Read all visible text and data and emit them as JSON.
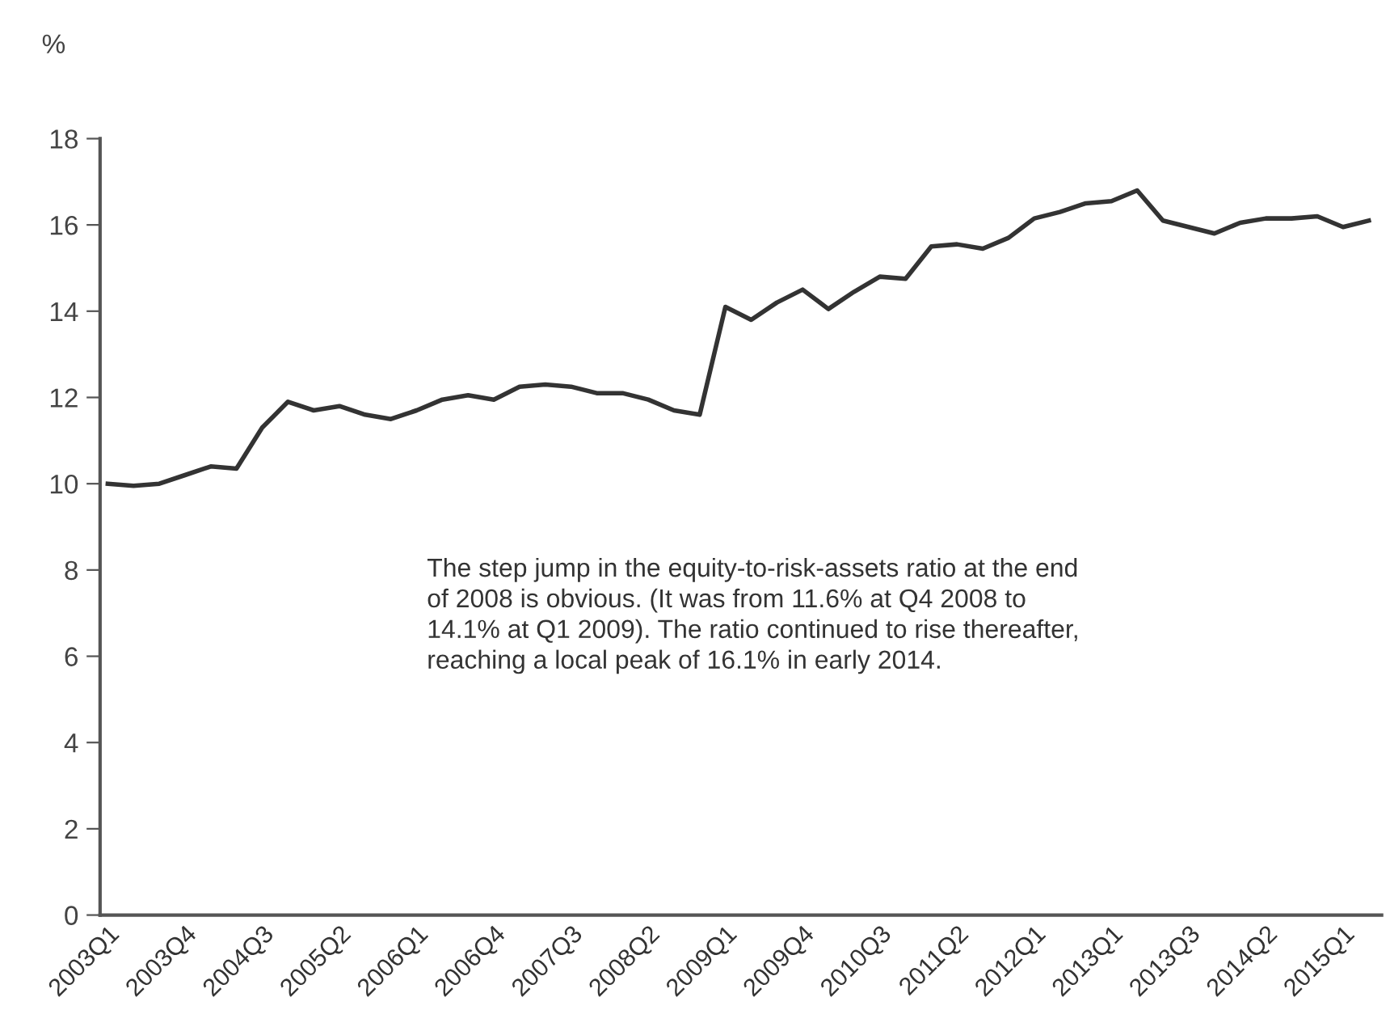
{
  "chart_data": {
    "type": "line",
    "ylabel": "%",
    "categories": [
      "2003Q1",
      null,
      null,
      "2003Q4",
      null,
      null,
      "2004Q3",
      null,
      null,
      "2005Q2",
      null,
      null,
      "2006Q1",
      null,
      null,
      "2006Q4",
      null,
      null,
      "2007Q3",
      null,
      null,
      "2008Q2",
      null,
      null,
      "2009Q1",
      null,
      null,
      "2009Q4",
      null,
      null,
      "2010Q3",
      null,
      null,
      "2011Q2",
      null,
      null,
      "2012Q1",
      null,
      null,
      "2013Q1",
      null,
      null,
      "2013Q3",
      null,
      null,
      "2014Q2",
      null,
      null,
      "2015Q1",
      null
    ],
    "series": [
      {
        "color": "#333333",
        "values": [
          10.0,
          9.95,
          10.0,
          10.2,
          10.4,
          10.35,
          11.3,
          11.9,
          11.7,
          11.8,
          11.6,
          11.5,
          11.7,
          11.95,
          12.05,
          11.95,
          12.25,
          12.3,
          12.25,
          12.1,
          12.1,
          11.95,
          11.7,
          11.6,
          14.1,
          13.8,
          14.2,
          14.5,
          14.05,
          14.45,
          14.8,
          14.75,
          15.5,
          15.55,
          15.45,
          15.7,
          16.15,
          16.3,
          16.5,
          16.55,
          16.8,
          16.1,
          15.95,
          15.8,
          16.05,
          16.15,
          16.15,
          16.2,
          15.95,
          16.1
        ]
      }
    ],
    "ylim": [
      0,
      18
    ],
    "yticks": [
      0,
      2,
      4,
      6,
      8,
      10,
      12,
      14,
      16,
      18
    ],
    "grid": false,
    "legend": false,
    "marker": "none",
    "line_style": "solid",
    "annotations": [
      "The step jump in the equity-to-risk-assets ratio at the end\nof 2008 is obvious. (It was from 11.6% at Q4 2008 to\n14.1% at Q1 2009). The ratio continued to rise thereafter,\nreaching a local peak of 16.1% in early 2014."
    ]
  }
}
